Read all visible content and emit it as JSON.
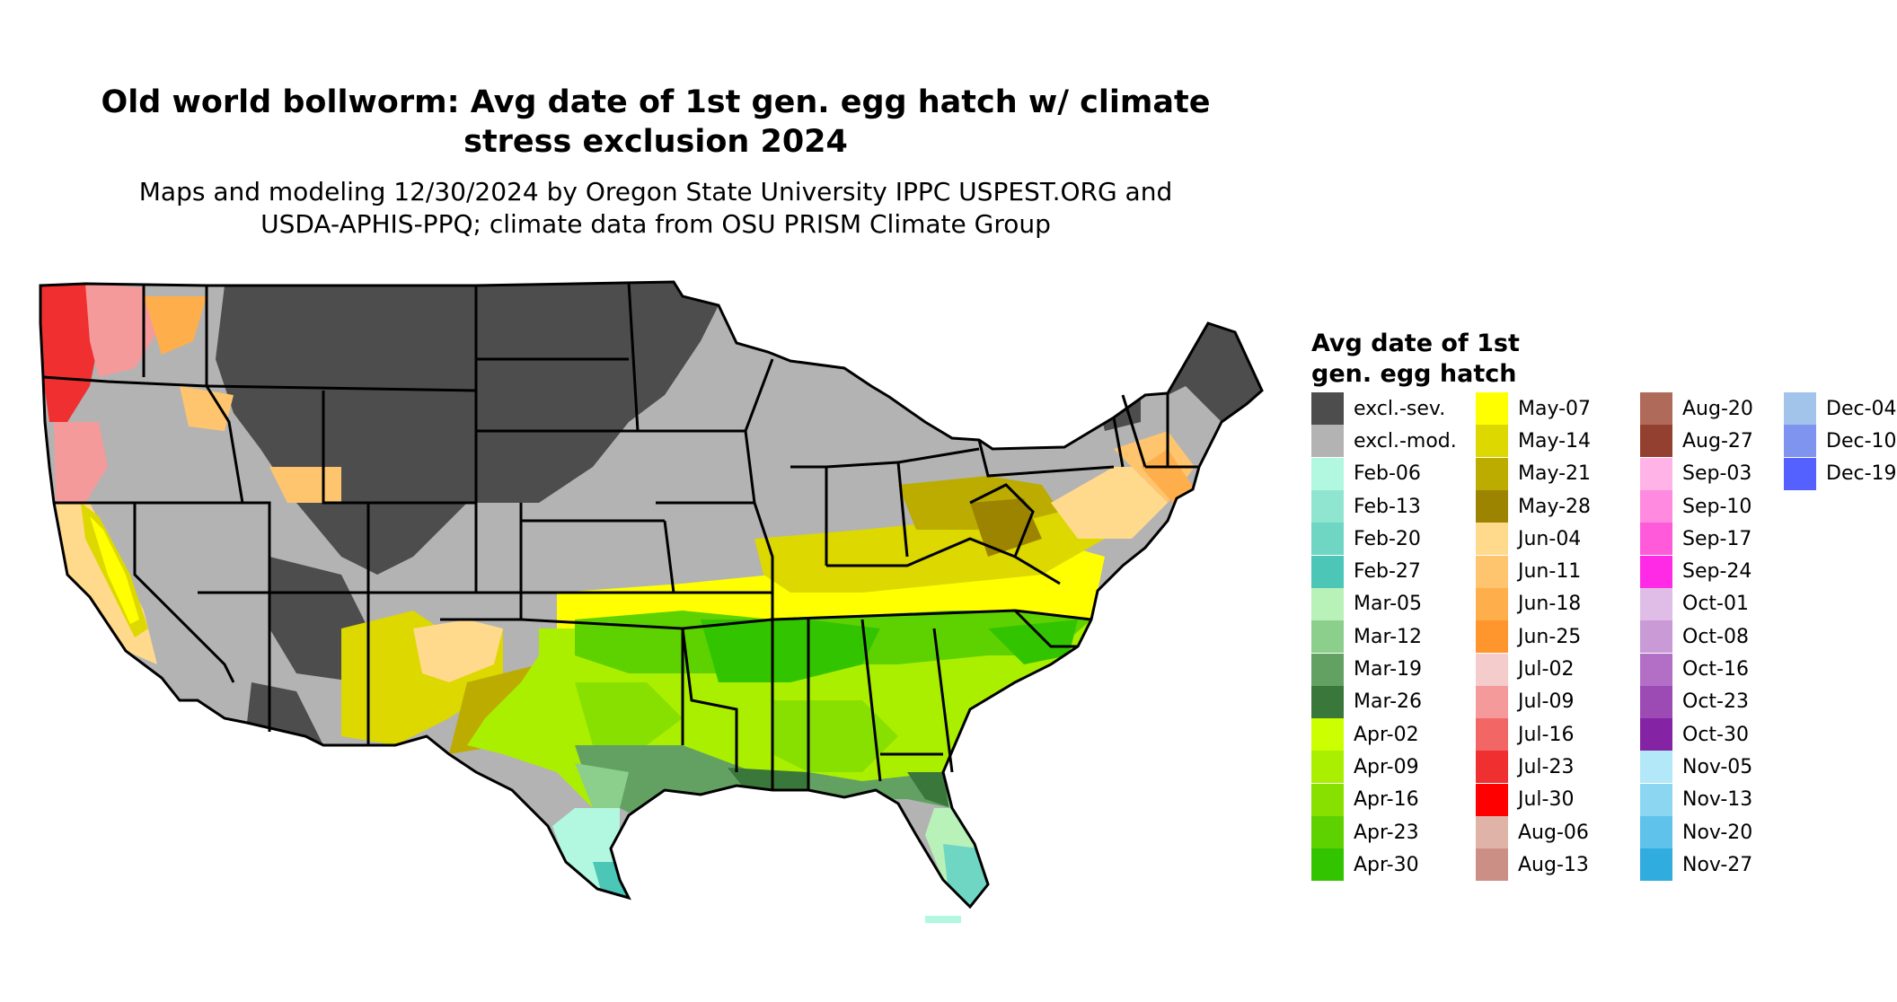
{
  "title_line1": "Old world bollworm: Avg date of 1st gen. egg hatch w/ climate",
  "title_line2": "stress exclusion 2024",
  "subtitle_line1": "Maps and modeling 12/30/2024 by Oregon State University IPPC USPEST.ORG and",
  "subtitle_line2": "USDA-APHIS-PPQ; climate data from OSU PRISM Climate Group",
  "legend": {
    "title_line1": "Avg date of 1st",
    "title_line2": "gen. egg hatch",
    "columns": [
      [
        {
          "label": "excl.-sev.",
          "color": "#4d4d4d"
        },
        {
          "label": "excl.-mod.",
          "color": "#b3b3b3"
        },
        {
          "label": "Feb-06",
          "color": "#b2f7e0"
        },
        {
          "label": "Feb-13",
          "color": "#8fe5cf"
        },
        {
          "label": "Feb-20",
          "color": "#6fd6c3"
        },
        {
          "label": "Feb-27",
          "color": "#4cc6b6"
        },
        {
          "label": "Mar-05",
          "color": "#b8f2b8"
        },
        {
          "label": "Mar-12",
          "color": "#8ccf8c"
        },
        {
          "label": "Mar-19",
          "color": "#62a162"
        },
        {
          "label": "Mar-26",
          "color": "#3a773a"
        },
        {
          "label": "Apr-02",
          "color": "#ccff00"
        },
        {
          "label": "Apr-09",
          "color": "#aaef00"
        },
        {
          "label": "Apr-16",
          "color": "#88e000"
        },
        {
          "label": "Apr-23",
          "color": "#5ed200"
        },
        {
          "label": "Apr-30",
          "color": "#33c400"
        }
      ],
      [
        {
          "label": "May-07",
          "color": "#ffff00"
        },
        {
          "label": "May-14",
          "color": "#dcd800"
        },
        {
          "label": "May-21",
          "color": "#bcac00"
        },
        {
          "label": "May-28",
          "color": "#9c8400"
        },
        {
          "label": "Jun-04",
          "color": "#ffd98c"
        },
        {
          "label": "Jun-11",
          "color": "#ffc56e"
        },
        {
          "label": "Jun-18",
          "color": "#ffae4c"
        },
        {
          "label": "Jun-25",
          "color": "#ff962d"
        },
        {
          "label": "Jul-02",
          "color": "#f5cccc"
        },
        {
          "label": "Jul-09",
          "color": "#f49a9a"
        },
        {
          "label": "Jul-16",
          "color": "#f26666"
        },
        {
          "label": "Jul-23",
          "color": "#f03030"
        },
        {
          "label": "Jul-30",
          "color": "#ff0000"
        },
        {
          "label": "Aug-06",
          "color": "#e0b3a8"
        },
        {
          "label": "Aug-13",
          "color": "#cb8f85"
        }
      ],
      [
        {
          "label": "Aug-20",
          "color": "#b06a5a"
        },
        {
          "label": "Aug-27",
          "color": "#944030"
        },
        {
          "label": "Sep-03",
          "color": "#ffb3e6"
        },
        {
          "label": "Sep-10",
          "color": "#ff8ae0"
        },
        {
          "label": "Sep-17",
          "color": "#ff5ad9"
        },
        {
          "label": "Sep-24",
          "color": "#ff2ae6"
        },
        {
          "label": "Oct-01",
          "color": "#e0bde6"
        },
        {
          "label": "Oct-08",
          "color": "#c99ad6"
        },
        {
          "label": "Oct-16",
          "color": "#b36fc6"
        },
        {
          "label": "Oct-23",
          "color": "#9c4ab4"
        },
        {
          "label": "Oct-30",
          "color": "#8424a4"
        },
        {
          "label": "Nov-05",
          "color": "#b3e8f8"
        },
        {
          "label": "Nov-13",
          "color": "#8cd6f2"
        },
        {
          "label": "Nov-20",
          "color": "#5ec2ea"
        },
        {
          "label": "Nov-27",
          "color": "#30acdf"
        }
      ],
      [
        {
          "label": "Dec-04",
          "color": "#a3c4ea"
        },
        {
          "label": "Dec-10",
          "color": "#7e94ee"
        },
        {
          "label": "Dec-19",
          "color": "#5561ff"
        }
      ]
    ]
  }
}
